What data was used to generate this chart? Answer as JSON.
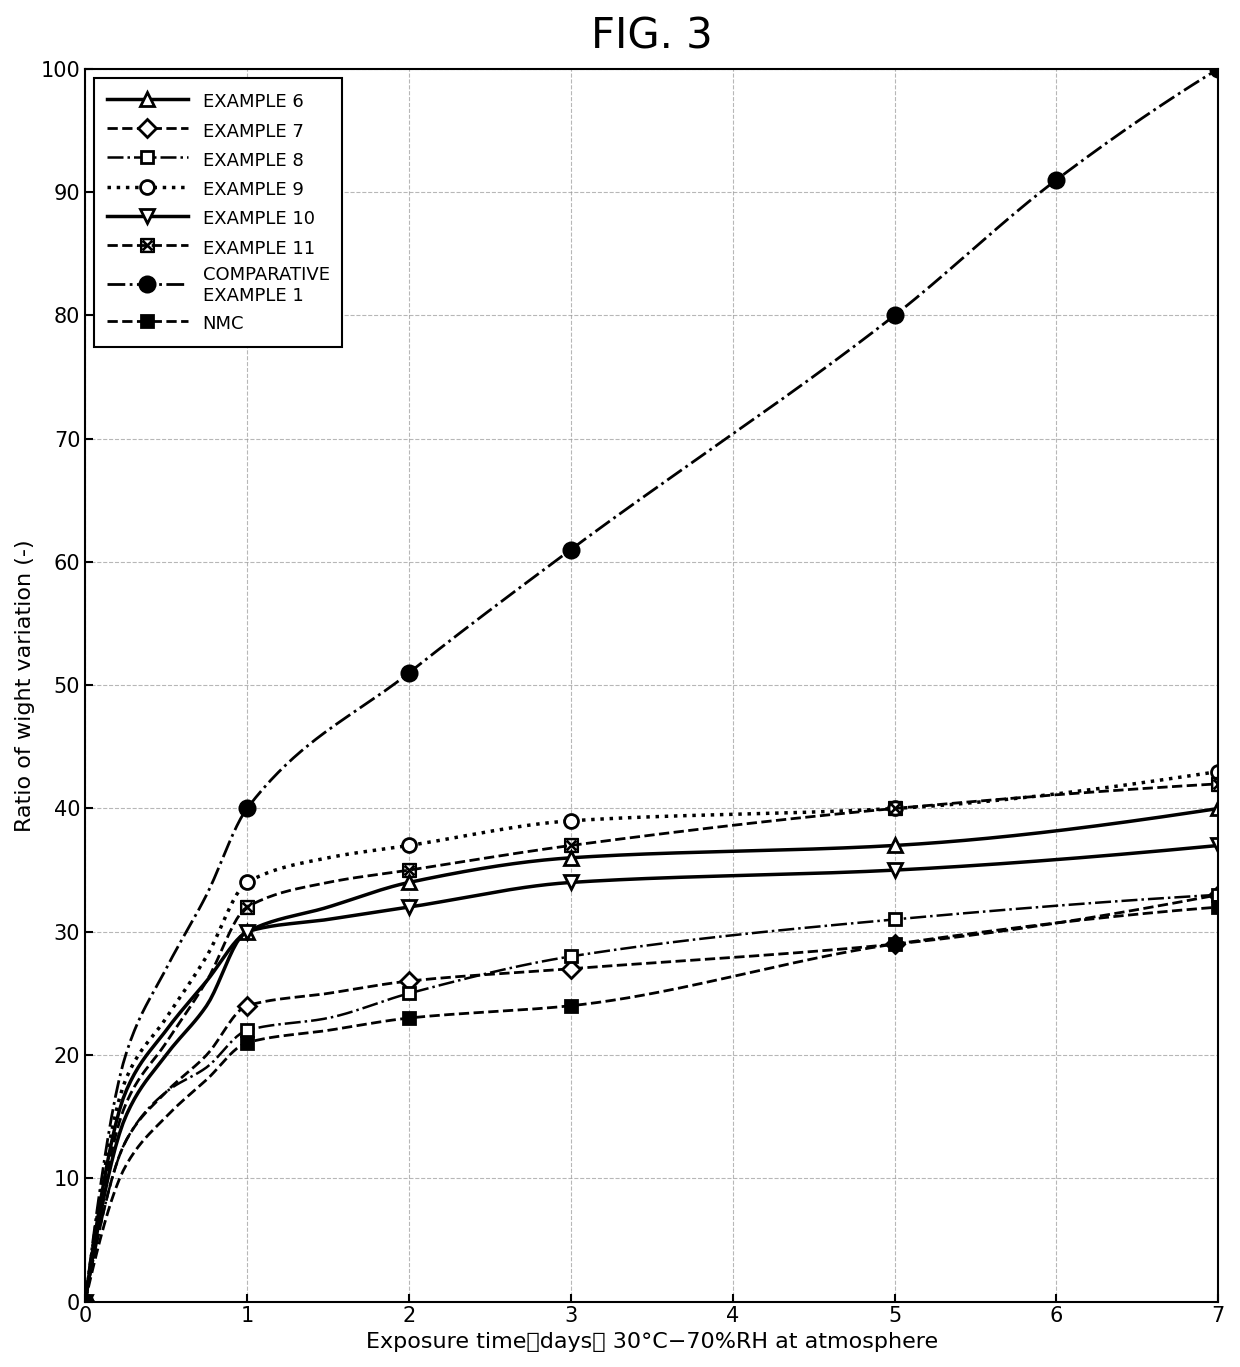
{
  "title": "FIG. 3",
  "xlabel": "Exposure time（days） 30°C−70%RH at atmosphere",
  "ylabel": "Ratio of wight variation (-)",
  "xlim": [
    0,
    7
  ],
  "ylim": [
    0,
    100
  ],
  "xticks": [
    0,
    1,
    2,
    3,
    4,
    5,
    6,
    7
  ],
  "yticks": [
    0,
    10,
    20,
    30,
    40,
    50,
    60,
    70,
    80,
    90,
    100
  ],
  "series": {
    "EXAMPLE 6": {
      "x": [
        0,
        0.25,
        0.5,
        0.75,
        1,
        1.5,
        2,
        3,
        5,
        7
      ],
      "y": [
        0,
        17,
        22,
        26,
        30,
        32,
        34,
        36,
        37,
        40
      ],
      "linestyle": "-",
      "linewidth": 2.5,
      "marker": "^",
      "marker_x": [
        0,
        1,
        2,
        3,
        5,
        7
      ],
      "marker_y": [
        0,
        30,
        34,
        36,
        37,
        40
      ],
      "markersize": 10,
      "markerfacecolor": "white",
      "markeredgecolor": "black",
      "markeredgewidth": 2,
      "color": "black",
      "fillstyle": "none"
    },
    "EXAMPLE 7": {
      "x": [
        0,
        0.25,
        0.5,
        0.75,
        1,
        1.5,
        2,
        3,
        5,
        7
      ],
      "y": [
        0,
        13,
        17,
        20,
        24,
        25,
        26,
        27,
        29,
        33
      ],
      "linestyle": "--",
      "linewidth": 2,
      "marker": "D",
      "marker_x": [
        0,
        1,
        2,
        3,
        5,
        7
      ],
      "marker_y": [
        0,
        24,
        26,
        27,
        29,
        33
      ],
      "markersize": 9,
      "markerfacecolor": "white",
      "markeredgecolor": "black",
      "markeredgewidth": 2,
      "color": "black",
      "fillstyle": "none"
    },
    "EXAMPLE 8": {
      "x": [
        0,
        0.25,
        0.5,
        0.75,
        1,
        1.5,
        2,
        3,
        5,
        7
      ],
      "y": [
        0,
        13,
        17,
        19,
        22,
        23,
        25,
        28,
        31,
        33
      ],
      "linestyle": "-.",
      "linewidth": 1.8,
      "marker": "s",
      "marker_x": [
        0,
        1,
        2,
        3,
        5,
        7
      ],
      "marker_y": [
        0,
        22,
        25,
        28,
        31,
        33
      ],
      "markersize": 9,
      "markerfacecolor": "white",
      "markeredgecolor": "black",
      "markeredgewidth": 2,
      "color": "black",
      "fillstyle": "none"
    },
    "EXAMPLE 9": {
      "x": [
        0,
        0.25,
        0.5,
        0.75,
        1,
        1.5,
        2,
        3,
        5,
        7
      ],
      "y": [
        0,
        18,
        23,
        28,
        34,
        36,
        37,
        39,
        40,
        43
      ],
      "linestyle": ":",
      "linewidth": 2.5,
      "marker": "o",
      "marker_x": [
        0,
        1,
        2,
        3,
        5,
        7
      ],
      "marker_y": [
        0,
        34,
        37,
        39,
        40,
        43
      ],
      "markersize": 10,
      "markerfacecolor": "white",
      "markeredgecolor": "black",
      "markeredgewidth": 2,
      "color": "black",
      "fillstyle": "none"
    },
    "EXAMPLE 10": {
      "x": [
        0,
        0.25,
        0.5,
        0.75,
        1,
        1.5,
        2,
        3,
        5,
        7
      ],
      "y": [
        0,
        15,
        20,
        24,
        30,
        31,
        32,
        34,
        35,
        37
      ],
      "linestyle": "-",
      "linewidth": 2.5,
      "marker": "v",
      "marker_x": [
        0,
        1,
        2,
        3,
        5,
        7
      ],
      "marker_y": [
        0,
        30,
        32,
        34,
        35,
        37
      ],
      "markersize": 10,
      "markerfacecolor": "white",
      "markeredgecolor": "black",
      "markeredgewidth": 2,
      "color": "black",
      "fillstyle": "none"
    },
    "EXAMPLE 11": {
      "x": [
        0,
        0.25,
        0.5,
        0.75,
        1,
        1.5,
        2,
        3,
        5,
        7
      ],
      "y": [
        0,
        16,
        21,
        26,
        32,
        34,
        35,
        37,
        40,
        42
      ],
      "linestyle": "--",
      "linewidth": 2,
      "marker": "boxtimes",
      "marker_x": [
        0,
        1,
        2,
        3,
        5,
        7
      ],
      "marker_y": [
        0,
        32,
        35,
        37,
        40,
        42
      ],
      "markersize": 10,
      "markerfacecolor": "white",
      "markeredgecolor": "black",
      "markeredgewidth": 2,
      "color": "black",
      "fillstyle": "none"
    },
    "COMPARATIVE EXAMPLE 1": {
      "x": [
        0,
        0.25,
        0.5,
        0.75,
        1,
        2,
        3,
        5,
        6,
        7
      ],
      "y": [
        0,
        20,
        27,
        33,
        40,
        51,
        61,
        80,
        91,
        100
      ],
      "linestyle": "-.",
      "linewidth": 2,
      "marker": "o",
      "marker_x": [
        0,
        1,
        2,
        3,
        5,
        6,
        7
      ],
      "marker_y": [
        0,
        40,
        51,
        61,
        80,
        91,
        100
      ],
      "markersize": 11,
      "markerfacecolor": "black",
      "markeredgecolor": "black",
      "markeredgewidth": 2,
      "color": "black",
      "fillstyle": "full"
    },
    "NMC": {
      "x": [
        0,
        0.25,
        0.5,
        0.75,
        1,
        1.5,
        2,
        3,
        5,
        7
      ],
      "y": [
        0,
        11,
        15,
        18,
        21,
        22,
        23,
        24,
        29,
        32
      ],
      "linestyle": "--",
      "linewidth": 2,
      "marker": "s",
      "marker_x": [
        0,
        1,
        2,
        3,
        5,
        7
      ],
      "marker_y": [
        0,
        21,
        23,
        24,
        29,
        32
      ],
      "markersize": 9,
      "markerfacecolor": "black",
      "markeredgecolor": "black",
      "markeredgewidth": 2,
      "color": "black",
      "fillstyle": "full"
    }
  },
  "legend_order": [
    "EXAMPLE 6",
    "EXAMPLE 7",
    "EXAMPLE 8",
    "EXAMPLE 9",
    "EXAMPLE 10",
    "EXAMPLE 11",
    "COMPARATIVE EXAMPLE 1",
    "NMC"
  ],
  "legend_labels": [
    "EXAMPLE 6",
    "EXAMPLE 7",
    "EXAMPLE 8",
    "EXAMPLE 9",
    "EXAMPLE 10",
    "EXAMPLE 11",
    "COMPARATIVE\nEXAMPLE 1",
    "NMC"
  ],
  "grid_color": "#999999",
  "grid_linestyle": "--",
  "background_color": "white"
}
